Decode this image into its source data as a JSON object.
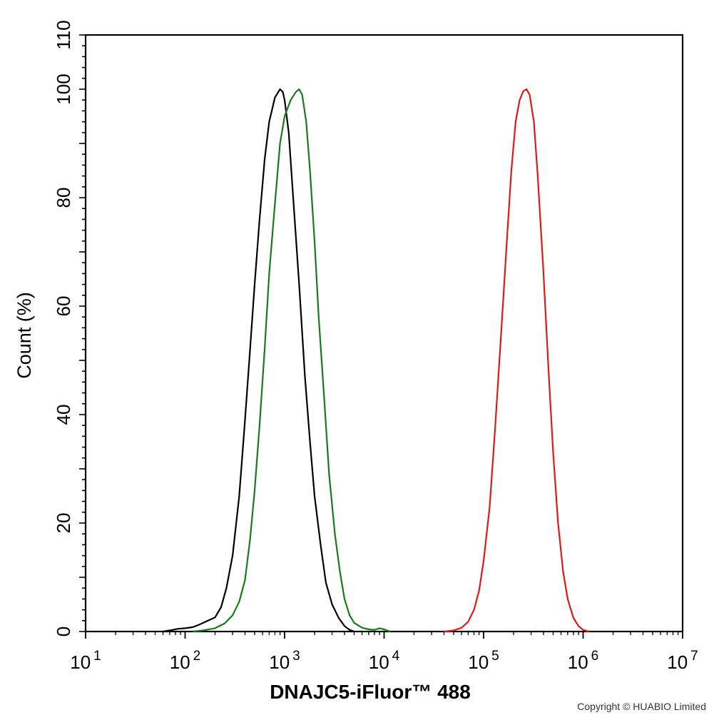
{
  "chart_data": {
    "type": "line",
    "xlabel": "DNAJC5-iFluor™ 488",
    "ylabel": "Count  (%)",
    "xscale": "log",
    "xlim": [
      10,
      10000000
    ],
    "ylim": [
      0,
      110
    ],
    "x_ticks": [
      {
        "base": "10",
        "exp": "1"
      },
      {
        "base": "10",
        "exp": "2"
      },
      {
        "base": "10",
        "exp": "3"
      },
      {
        "base": "10",
        "exp": "4"
      },
      {
        "base": "10",
        "exp": "5"
      },
      {
        "base": "10",
        "exp": "6"
      },
      {
        "base": "10",
        "exp": "7"
      }
    ],
    "y_ticks": [
      "0",
      "20",
      "40",
      "60",
      "80",
      "100",
      "110"
    ],
    "y_tick_values": [
      0,
      20,
      40,
      60,
      80,
      100,
      110
    ],
    "grid": false,
    "series": [
      {
        "color": "#000000",
        "points": [
          [
            60,
            0
          ],
          [
            75,
            0.3
          ],
          [
            85,
            0.5
          ],
          [
            100,
            0.6
          ],
          [
            120,
            0.8
          ],
          [
            140,
            1.3
          ],
          [
            170,
            2.0
          ],
          [
            200,
            2.6
          ],
          [
            230,
            4.5
          ],
          [
            260,
            8
          ],
          [
            300,
            14
          ],
          [
            350,
            25
          ],
          [
            400,
            39
          ],
          [
            450,
            52
          ],
          [
            500,
            64
          ],
          [
            560,
            76
          ],
          [
            630,
            87
          ],
          [
            700,
            94
          ],
          [
            800,
            98.5
          ],
          [
            900,
            100
          ],
          [
            960,
            99.5
          ],
          [
            1000,
            98
          ],
          [
            1100,
            92
          ],
          [
            1200,
            82
          ],
          [
            1400,
            64
          ],
          [
            1600,
            47
          ],
          [
            1800,
            35
          ],
          [
            2000,
            25
          ],
          [
            2300,
            16
          ],
          [
            2600,
            9
          ],
          [
            3000,
            5
          ],
          [
            3500,
            2.5
          ],
          [
            4000,
            1
          ],
          [
            4500,
            0.3
          ],
          [
            5000,
            0
          ]
        ]
      },
      {
        "color": "#1a7a1a",
        "points": [
          [
            120,
            0
          ],
          [
            150,
            0.2
          ],
          [
            200,
            0.6
          ],
          [
            250,
            1.5
          ],
          [
            300,
            3
          ],
          [
            350,
            5.5
          ],
          [
            400,
            9.5
          ],
          [
            450,
            17
          ],
          [
            500,
            26
          ],
          [
            560,
            38
          ],
          [
            630,
            52
          ],
          [
            700,
            66
          ],
          [
            800,
            79
          ],
          [
            900,
            90
          ],
          [
            1000,
            95
          ],
          [
            1150,
            98
          ],
          [
            1300,
            99.5
          ],
          [
            1400,
            100
          ],
          [
            1500,
            99
          ],
          [
            1650,
            94
          ],
          [
            1800,
            85
          ],
          [
            2000,
            72
          ],
          [
            2200,
            58
          ],
          [
            2500,
            43
          ],
          [
            2800,
            29
          ],
          [
            3200,
            18
          ],
          [
            3600,
            11
          ],
          [
            4000,
            6
          ],
          [
            4500,
            3
          ],
          [
            5000,
            1.6
          ],
          [
            6000,
            0.7
          ],
          [
            7000,
            0.4
          ],
          [
            8000,
            0.3
          ],
          [
            9000,
            0.6
          ],
          [
            10000,
            0.4
          ],
          [
            11500,
            0
          ]
        ]
      },
      {
        "color": "#e01818",
        "points": [
          [
            40000,
            0
          ],
          [
            50000,
            0.2
          ],
          [
            60000,
            0.7
          ],
          [
            70000,
            1.8
          ],
          [
            80000,
            4
          ],
          [
            90000,
            7.5
          ],
          [
            100000,
            13
          ],
          [
            115000,
            23
          ],
          [
            130000,
            37
          ],
          [
            150000,
            55
          ],
          [
            170000,
            71
          ],
          [
            190000,
            85
          ],
          [
            210000,
            94
          ],
          [
            230000,
            98
          ],
          [
            250000,
            99.6
          ],
          [
            270000,
            100
          ],
          [
            290000,
            99
          ],
          [
            320000,
            94
          ],
          [
            350000,
            84
          ],
          [
            400000,
            66
          ],
          [
            450000,
            48
          ],
          [
            500000,
            33
          ],
          [
            560000,
            20
          ],
          [
            630000,
            11
          ],
          [
            700000,
            6
          ],
          [
            800000,
            2.5
          ],
          [
            900000,
            1
          ],
          [
            1000000,
            0.3
          ],
          [
            1150000,
            0
          ]
        ]
      }
    ]
  },
  "copyright": "Copyright © HUABIO Limited"
}
